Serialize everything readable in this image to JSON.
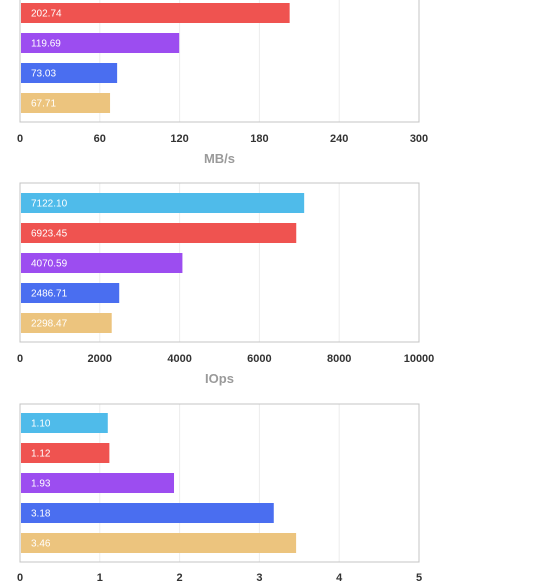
{
  "chart_data": [
    {
      "type": "bar",
      "orientation": "horizontal",
      "xlabel": "MB/s",
      "xlim": [
        0,
        300
      ],
      "xticks": [
        "0",
        "60",
        "120",
        "180",
        "240",
        "300"
      ],
      "grid": true,
      "bars": [
        {
          "label": "202.74",
          "value": 202.74,
          "color": "#ef5350"
        },
        {
          "label": "119.69",
          "value": 119.69,
          "color": "#9c4df0"
        },
        {
          "label": "73.03",
          "value": 73.03,
          "color": "#4a6ef0"
        },
        {
          "label": "67.71",
          "value": 67.71,
          "color": "#ecc47e"
        }
      ]
    },
    {
      "type": "bar",
      "orientation": "horizontal",
      "xlabel": "IOps",
      "xlim": [
        0,
        10000
      ],
      "xticks": [
        "0",
        "2000",
        "4000",
        "6000",
        "8000",
        "10000"
      ],
      "grid": true,
      "bars": [
        {
          "label": "7122.10",
          "value": 7122.1,
          "color": "#4fbbea"
        },
        {
          "label": "6923.45",
          "value": 6923.45,
          "color": "#ef5350"
        },
        {
          "label": "4070.59",
          "value": 4070.59,
          "color": "#9c4df0"
        },
        {
          "label": "2486.71",
          "value": 2486.71,
          "color": "#4a6ef0"
        },
        {
          "label": "2298.47",
          "value": 2298.47,
          "color": "#ecc47e"
        }
      ]
    },
    {
      "type": "bar",
      "orientation": "horizontal",
      "xlabel": "",
      "xlim": [
        0,
        5
      ],
      "xticks": [
        "0",
        "1",
        "2",
        "3",
        "4",
        "5"
      ],
      "grid": true,
      "bars": [
        {
          "label": "1.10",
          "value": 1.1,
          "color": "#4fbbea"
        },
        {
          "label": "1.12",
          "value": 1.12,
          "color": "#ef5350"
        },
        {
          "label": "1.93",
          "value": 1.93,
          "color": "#9c4df0"
        },
        {
          "label": "3.18",
          "value": 3.18,
          "color": "#4a6ef0"
        },
        {
          "label": "3.46",
          "value": 3.46,
          "color": "#ecc47e"
        }
      ]
    }
  ]
}
